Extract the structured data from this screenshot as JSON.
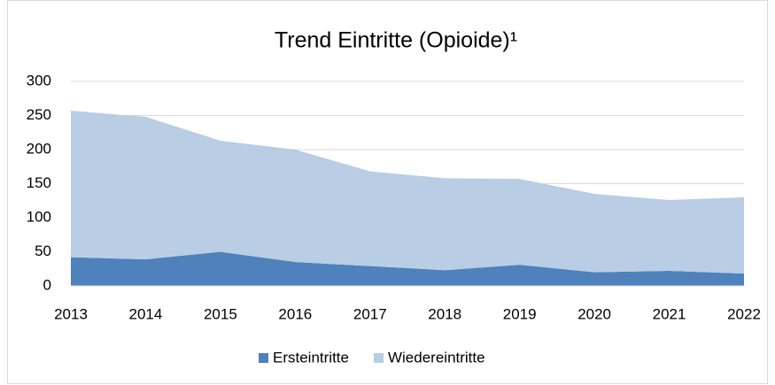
{
  "chart_data": {
    "type": "stacked-area",
    "title": "Trend Eintritte (Opioide)¹",
    "categories": [
      "2013",
      "2014",
      "2015",
      "2016",
      "2017",
      "2018",
      "2019",
      "2020",
      "2021",
      "2022"
    ],
    "series": [
      {
        "name": "Ersteintritte",
        "color": "#4f81bd",
        "values": [
          42,
          39,
          50,
          35,
          29,
          23,
          31,
          20,
          22,
          18
        ]
      },
      {
        "name": "Wiedereintritte",
        "color": "#b9cde5",
        "values": [
          215,
          209,
          163,
          165,
          139,
          135,
          126,
          115,
          104,
          112
        ]
      }
    ],
    "ylim": [
      0,
      300
    ],
    "yticks": [
      0,
      50,
      100,
      150,
      200,
      250,
      300
    ],
    "grid": true,
    "legend": "bottom"
  }
}
